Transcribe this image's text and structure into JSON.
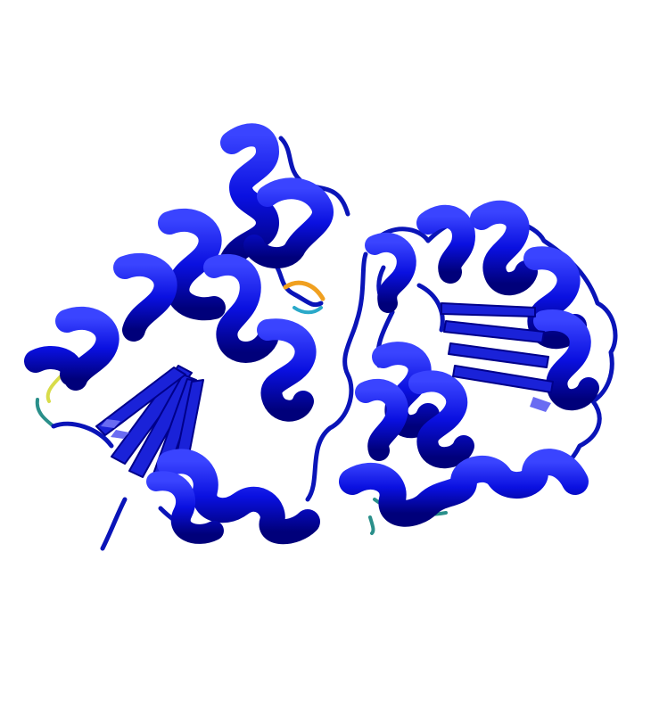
{
  "image": {
    "description_kind": "protein-cartoon-render",
    "colors": {
      "background": "#ffffff",
      "helix_main": "#0a10e0",
      "helix_dark": "#00008a",
      "helix_light": "#3840ff",
      "loop_main": "#0a14b8",
      "loop_cyan": "#2aa9c9",
      "loop_teal": "#2a8f8a",
      "loop_yellow": "#d8dc4a",
      "loop_orange": "#f0a020",
      "sheet_face": "#1a22d8",
      "sheet_highlight": "#6a6cf2"
    }
  }
}
